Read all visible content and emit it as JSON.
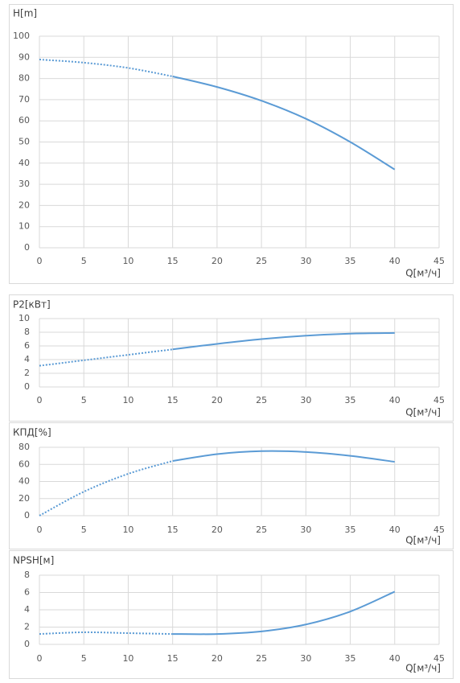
{
  "chart_data": [
    {
      "type": "line",
      "y_label": "H[m]",
      "x_label": "Q[м³/ч]",
      "x": [
        0,
        5,
        10,
        15,
        20,
        25,
        30,
        35,
        40
      ],
      "series": [
        {
          "color": "#5b9bd5",
          "style": "dotted",
          "values": [
            89,
            87.5,
            85,
            81,
            null,
            null,
            null,
            null,
            null
          ]
        },
        {
          "color": "#5b9bd5",
          "style": "solid",
          "values": [
            null,
            null,
            null,
            81,
            76,
            69.5,
            61,
            50,
            37
          ]
        }
      ],
      "xlim": [
        0,
        45
      ],
      "xticks": [
        0,
        5,
        10,
        15,
        20,
        25,
        30,
        35,
        40,
        45
      ],
      "ylim": [
        0,
        100
      ],
      "yticks": [
        0,
        10,
        20,
        30,
        40,
        50,
        60,
        70,
        80,
        90,
        100
      ],
      "grid": true
    },
    {
      "type": "line",
      "y_label": "P2[кВт]",
      "x_label": "Q[м³/ч]",
      "x": [
        0,
        5,
        10,
        15,
        20,
        25,
        30,
        35,
        40
      ],
      "series": [
        {
          "color": "#5b9bd5",
          "style": "dotted",
          "values": [
            3.1,
            3.9,
            4.7,
            5.5,
            null,
            null,
            null,
            null,
            null
          ]
        },
        {
          "color": "#5b9bd5",
          "style": "solid",
          "values": [
            null,
            null,
            null,
            5.5,
            6.3,
            7.0,
            7.5,
            7.8,
            7.9
          ]
        }
      ],
      "xlim": [
        0,
        45
      ],
      "xticks": [
        0,
        5,
        10,
        15,
        20,
        25,
        30,
        35,
        40,
        45
      ],
      "ylim": [
        0,
        10
      ],
      "yticks": [
        0,
        2,
        4,
        6,
        8,
        10
      ],
      "grid": true
    },
    {
      "type": "line",
      "y_label": "КПД[%]",
      "x_label": "Q[м³/ч]",
      "x": [
        0,
        5,
        10,
        15,
        20,
        25,
        30,
        35,
        40
      ],
      "series": [
        {
          "color": "#5b9bd5",
          "style": "dotted",
          "values": [
            0,
            28,
            49,
            64,
            null,
            null,
            null,
            null,
            null
          ]
        },
        {
          "color": "#5b9bd5",
          "style": "solid",
          "values": [
            null,
            null,
            null,
            64,
            72,
            75.5,
            74.5,
            70,
            63
          ]
        }
      ],
      "xlim": [
        0,
        45
      ],
      "xticks": [
        0,
        5,
        10,
        15,
        20,
        25,
        30,
        35,
        40,
        45
      ],
      "ylim": [
        0,
        80
      ],
      "yticks": [
        0,
        20,
        40,
        60,
        80
      ],
      "grid": true
    },
    {
      "type": "line",
      "y_label": "NPSH[м]",
      "x_label": "Q[м³/ч]",
      "x": [
        0,
        5,
        10,
        15,
        20,
        25,
        30,
        35,
        40
      ],
      "series": [
        {
          "color": "#5b9bd5",
          "style": "dotted",
          "values": [
            1.2,
            1.4,
            1.3,
            1.2,
            null,
            null,
            null,
            null,
            null
          ]
        },
        {
          "color": "#5b9bd5",
          "style": "solid",
          "values": [
            null,
            null,
            null,
            1.2,
            1.2,
            1.5,
            2.3,
            3.8,
            6.1
          ]
        }
      ],
      "xlim": [
        0,
        45
      ],
      "xticks": [
        0,
        5,
        10,
        15,
        20,
        25,
        30,
        35,
        40,
        45
      ],
      "ylim": [
        0,
        8
      ],
      "yticks": [
        0,
        2,
        4,
        6,
        8
      ],
      "grid": true
    }
  ]
}
